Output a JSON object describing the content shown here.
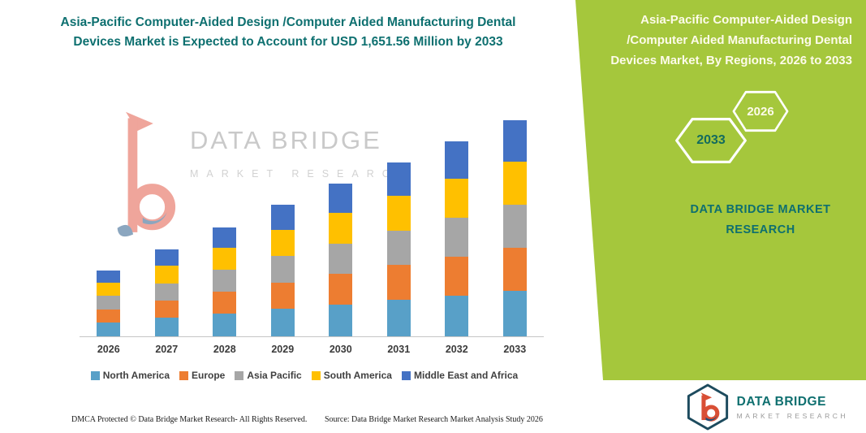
{
  "left": {
    "title": "Asia-Pacific Computer-Aided Design /Computer Aided Manufacturing Dental Devices Market is Expected to Account for USD 1,651.56 Million by 2033"
  },
  "chart_data": {
    "type": "bar",
    "stacked": true,
    "title": "Asia-Pacific Computer-Aided Design /Computer Aided Manufacturing Dental Devices Market is Expected to Account for USD 1,651.56 Million by 2033",
    "unit": "USD Million",
    "categories": [
      "2026",
      "2027",
      "2028",
      "2029",
      "2030",
      "2031",
      "2032",
      "2033"
    ],
    "series": [
      {
        "name": "North America",
        "color": "#58A0C8",
        "values": [
          106,
          140,
          175,
          211,
          245,
          279,
          313,
          347
        ]
      },
      {
        "name": "Europe",
        "color": "#ED7D31",
        "values": [
          101,
          133,
          167,
          201,
          233,
          265,
          298,
          330
        ]
      },
      {
        "name": "Asia Pacific",
        "color": "#A6A6A6",
        "values": [
          101,
          133,
          167,
          201,
          233,
          265,
          298,
          330
        ]
      },
      {
        "name": "South America",
        "color": "#FFC000",
        "values": [
          101,
          133,
          167,
          201,
          233,
          265,
          298,
          330
        ]
      },
      {
        "name": "Middle East and Africa",
        "color": "#4472C4",
        "values": [
          96,
          128,
          159,
          189,
          221,
          253,
          282,
          314.56
        ]
      }
    ],
    "totals": [
      505,
      667,
      835,
      1003,
      1165,
      1327,
      1489,
      1651.56
    ],
    "ylim": [
      0,
      1800
    ],
    "grid": false,
    "legend_position": "bottom"
  },
  "watermark": {
    "line1": "DATA BRIDGE",
    "line2": "MARKET RESEARCH"
  },
  "right_panel": {
    "title": "Asia-Pacific Computer-Aided Design /Computer Aided Manufacturing Dental Devices Market, By Regions, 2026 to 2033",
    "hex_back_year": "2033",
    "hex_front_year": "2026",
    "brand": "DATA BRIDGE MARKET RESEARCH",
    "bg_color": "#A5C73C",
    "hex_stroke_color": "#FFFFFF"
  },
  "footer": {
    "dmca": "DMCA Protected © Data Bridge Market Research-  All Rights Reserved.",
    "source": "Source: Data Bridge Market Research  Market Analysis Study 2026"
  },
  "logo": {
    "brand_top": "DATA BRIDGE",
    "brand_bottom": "MARKET RESEARCH"
  },
  "colors": {
    "accent_teal": "#0E7070",
    "title_teal": "#0E7070"
  }
}
